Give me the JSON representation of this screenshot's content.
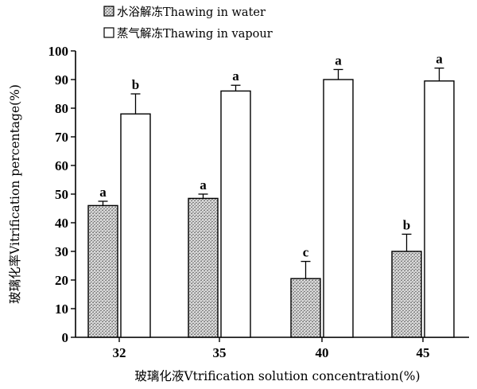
{
  "chart_data": {
    "type": "bar",
    "title": "",
    "xlabel": "玻璃化液Vtrification solution  concentration(%)",
    "ylabel": "玻璃化率Vitrification percentage(%)",
    "categories": [
      "32",
      "35",
      "40",
      "45"
    ],
    "ylim": [
      0,
      100
    ],
    "yticks": [
      0,
      10,
      20,
      30,
      40,
      50,
      60,
      70,
      80,
      90,
      100
    ],
    "grid": false,
    "legend_position": "top-left",
    "series": [
      {
        "name": "水浴解冻Thawing in water",
        "fill": "hatched-gray",
        "values": [
          46,
          48.5,
          20.5,
          30
        ],
        "errors": [
          1.5,
          1.5,
          6,
          6
        ],
        "labels": [
          "a",
          "a",
          "c",
          "b"
        ]
      },
      {
        "name": "蒸气解冻Thawing in vapour",
        "fill": "white",
        "values": [
          78,
          86,
          90,
          89.5
        ],
        "errors": [
          7,
          2,
          3.5,
          4.5
        ],
        "labels": [
          "b",
          "a",
          "a",
          "a"
        ]
      }
    ]
  },
  "colors": {
    "axis": "#000000",
    "bar_outline": "#000000",
    "open_bar_fill": "#ffffff",
    "hatched_bar_base": "#d4d4d4"
  }
}
